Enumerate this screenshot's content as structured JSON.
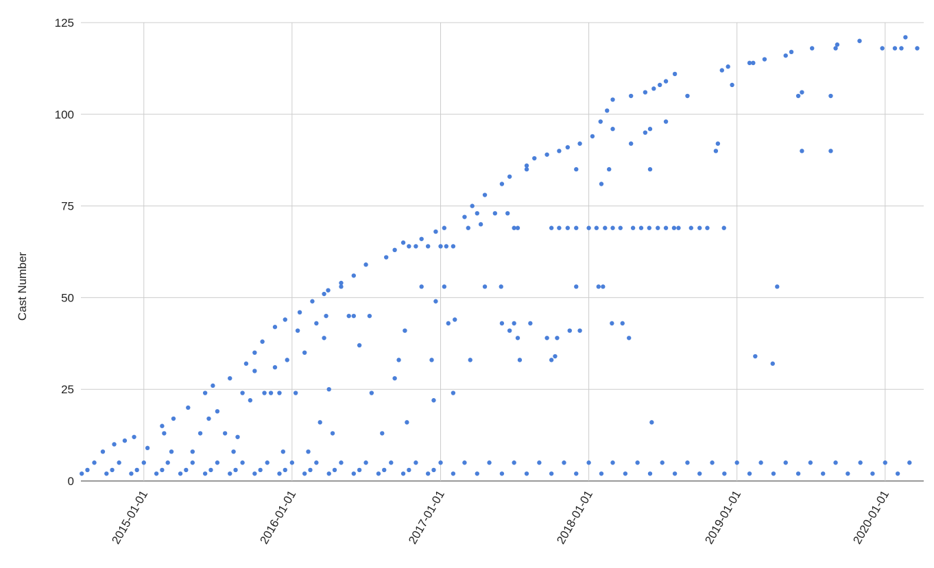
{
  "chart_data": {
    "type": "scatter",
    "y_label": "Cast Number",
    "xlim": [
      "2014-07-30",
      "2020-04-05"
    ],
    "xticks": [
      "2015-01-01",
      "2016-01-01",
      "2017-01-01",
      "2018-01-01",
      "2019-01-01",
      "2020-01-01"
    ],
    "ylim": [
      0,
      125
    ],
    "yticks": [
      0,
      25,
      50,
      75,
      100,
      125
    ],
    "grid": true,
    "series": [
      {
        "color": "#4a7fd9",
        "x": [
          "2014-09-22",
          "2014-10-20",
          "2014-11-15",
          "2014-12-08",
          "2015-01-10",
          "2015-02-15",
          "2015-03-15",
          "2015-04-20",
          "2015-06-01",
          "2015-06-20",
          "2015-08-01",
          "2015-09-10",
          "2015-10-01",
          "2015-10-20",
          "2015-11-20",
          "2015-12-15",
          "2016-01-20",
          "2016-02-20",
          "2016-03-20",
          "2016-03-30",
          "2016-05-01",
          "2016-06-01",
          "2016-07-01",
          "2016-08-20",
          "2016-09-10",
          "2016-10-01",
          "2016-11-15",
          "2016-12-20",
          "2017-01-10",
          "2017-03-01",
          "2017-03-20",
          "2017-04-20",
          "2017-06-01",
          "2017-06-20",
          "2017-08-01",
          "2017-08-20",
          "2017-09-20",
          "2017-10-20",
          "2017-11-10",
          "2017-12-10",
          "2018-01-10",
          "2018-01-30",
          "2018-02-15",
          "2018-03-01",
          "2018-04-15",
          "2018-05-20",
          "2018-06-10",
          "2018-06-25",
          "2018-07-10",
          "2018-08-01",
          "2018-09-01",
          "2018-11-25",
          "2018-12-10",
          "2018-12-20",
          "2019-02-01",
          "2019-02-10",
          "2019-03-10",
          "2019-05-01",
          "2019-05-15",
          "2019-07-05",
          "2019-09-01",
          "2019-09-05",
          "2019-10-30",
          "2019-12-25",
          "2020-01-25",
          "2020-02-10",
          "2020-02-20",
          "2020-03-20",
          "2019-06-01",
          "2019-06-10",
          "2019-06-10",
          "2019-08-20",
          "2019-08-20",
          "2019-02-15",
          "2019-03-30",
          "2019-04-10",
          "2018-05-20",
          "2018-06-01",
          "2018-06-01",
          "2018-07-10",
          "2018-11-10",
          "2018-11-15",
          "2018-04-15",
          "2018-03-01",
          "2018-02-20",
          "2018-02-01",
          "2018-01-25",
          "2017-12-01",
          "2017-12-10",
          "2018-02-05",
          "2017-10-01",
          "2017-10-20",
          "2017-11-10",
          "2017-12-01",
          "2018-01-01",
          "2018-01-20",
          "2018-02-10",
          "2018-03-01",
          "2018-03-20",
          "2018-04-20",
          "2018-05-10",
          "2018-05-30",
          "2018-06-20",
          "2018-07-10",
          "2018-07-30",
          "2018-08-10",
          "2018-09-10",
          "2018-10-01",
          "2018-10-20",
          "2018-11-30",
          "2017-01-01",
          "2017-01-15",
          "2017-02-01",
          "2017-03-10",
          "2017-04-01",
          "2017-04-10",
          "2017-05-15",
          "2017-06-15",
          "2017-07-01",
          "2017-07-10",
          "2016-10-15",
          "2016-11-01",
          "2016-12-01",
          "2017-01-10",
          "2017-01-20",
          "2017-02-01",
          "2017-02-05",
          "2016-12-20",
          "2016-12-10",
          "2016-11-15",
          "2017-03-15",
          "2017-04-20",
          "2017-05-30",
          "2017-06-20",
          "2017-07-01",
          "2017-07-10",
          "2017-08-10",
          "2017-09-20",
          "2017-10-10",
          "2017-10-15",
          "2017-07-15",
          "2017-06-01",
          "2017-08-01",
          "2017-10-01",
          "2017-11-15",
          "2017-12-01",
          "2018-02-27",
          "2018-03-25",
          "2018-04-10",
          "2018-06-05",
          "2015-02-20",
          "2015-03-10",
          "2015-05-01",
          "2015-05-20",
          "2015-06-10",
          "2015-07-01",
          "2015-07-20",
          "2015-08-10",
          "2015-09-01",
          "2015-09-20",
          "2015-10-01",
          "2015-10-25",
          "2015-11-10",
          "2015-12-01",
          "2015-12-20",
          "2016-01-10",
          "2016-02-01",
          "2016-03-01",
          "2016-03-25",
          "2016-04-10",
          "2016-03-10",
          "2016-03-20",
          "2016-04-01",
          "2016-05-20",
          "2016-06-15",
          "2016-07-15",
          "2016-08-10",
          "2016-09-10",
          "2016-10-10",
          "2016-12-15",
          "2016-05-01",
          "2016-06-01",
          "2016-07-10",
          "2016-09-20",
          "2016-10-05",
          "2015-11-20",
          "2015-12-10",
          "2016-02-10",
          "2016-01-15",
          "2015-08-20",
          "2014-08-01",
          "2014-10-01",
          "2014-12-01",
          "2015-02-01",
          "2015-04-01",
          "2015-06-01",
          "2015-08-01",
          "2015-10-01",
          "2015-12-01",
          "2016-02-01",
          "2016-04-01",
          "2016-06-01",
          "2016-08-01",
          "2016-10-01",
          "2016-12-01",
          "2017-02-01",
          "2017-04-01",
          "2017-06-01",
          "2017-08-01",
          "2017-10-01",
          "2017-12-01",
          "2018-02-01",
          "2018-04-01",
          "2018-06-01",
          "2018-08-01",
          "2018-10-01",
          "2018-12-01",
          "2019-02-01",
          "2019-04-01",
          "2019-06-01",
          "2019-08-01",
          "2019-10-01",
          "2019-12-01",
          "2020-02-01",
          "2014-09-01",
          "2014-11-01",
          "2015-01-01",
          "2015-03-01",
          "2015-05-01",
          "2015-07-01",
          "2015-09-01",
          "2015-11-01",
          "2016-01-01",
          "2016-03-01",
          "2016-05-01",
          "2016-07-01",
          "2016-09-01",
          "2016-11-01",
          "2017-01-01",
          "2017-03-01",
          "2017-05-01",
          "2017-07-01",
          "2017-09-01",
          "2017-11-01",
          "2018-01-01",
          "2018-03-01",
          "2018-05-01",
          "2018-07-01",
          "2018-09-01",
          "2018-11-01",
          "2019-01-01",
          "2019-03-01",
          "2019-05-01",
          "2019-07-01",
          "2019-09-01",
          "2019-11-01",
          "2020-01-01",
          "2020-03-01",
          "2014-08-15",
          "2014-10-15",
          "2014-12-15",
          "2015-02-15",
          "2015-04-15",
          "2015-06-15",
          "2015-08-15",
          "2015-10-15",
          "2015-12-15",
          "2016-02-15",
          "2016-04-15",
          "2016-06-15",
          "2016-08-15",
          "2016-10-15",
          "2016-12-15"
        ],
        "values": [
          8,
          10,
          11,
          12,
          9,
          15,
          17,
          20,
          24,
          26,
          28,
          32,
          35,
          38,
          42,
          44,
          46,
          49,
          51,
          52,
          54,
          56,
          59,
          61,
          63,
          65,
          66,
          68,
          69,
          72,
          75,
          78,
          81,
          83,
          86,
          88,
          89,
          90,
          91,
          92,
          94,
          98,
          101,
          104,
          105,
          106,
          107,
          108,
          109,
          111,
          105,
          112,
          113,
          108,
          114,
          114,
          115,
          116,
          117,
          118,
          118,
          119,
          120,
          118,
          118,
          118,
          121,
          118,
          105,
          106,
          90,
          105,
          90,
          34,
          32,
          53,
          95,
          96,
          85,
          98,
          90,
          92,
          92,
          96,
          85,
          81,
          53,
          53,
          41,
          53,
          69,
          69,
          69,
          69,
          69,
          69,
          69,
          69,
          69,
          69,
          69,
          69,
          69,
          69,
          69,
          69,
          69,
          69,
          69,
          69,
          64,
          64,
          64,
          69,
          73,
          70,
          73,
          73,
          69,
          69,
          64,
          64,
          64,
          53,
          43,
          24,
          44,
          49,
          33,
          53,
          33,
          53,
          53,
          41,
          43,
          39,
          43,
          39,
          34,
          39,
          33,
          43,
          85,
          33,
          41,
          85,
          43,
          43,
          39,
          16,
          13,
          8,
          8,
          13,
          17,
          19,
          13,
          8,
          24,
          22,
          30,
          24,
          24,
          24,
          33,
          24,
          35,
          43,
          45,
          13,
          16,
          39,
          25,
          45,
          37,
          24,
          13,
          28,
          16,
          22,
          53,
          45,
          45,
          33,
          41,
          31,
          8,
          8,
          41,
          12,
          2,
          2,
          2,
          2,
          2,
          2,
          2,
          2,
          2,
          2,
          2,
          2,
          2,
          2,
          2,
          2,
          2,
          2,
          2,
          2,
          2,
          2,
          2,
          2,
          2,
          2,
          2,
          2,
          2,
          2,
          2,
          2,
          2,
          2,
          5,
          5,
          5,
          5,
          5,
          5,
          5,
          5,
          5,
          5,
          5,
          5,
          5,
          5,
          5,
          5,
          5,
          5,
          5,
          5,
          5,
          5,
          5,
          5,
          5,
          5,
          5,
          5,
          5,
          5,
          5,
          5,
          5,
          5,
          3,
          3,
          3,
          3,
          3,
          3,
          3,
          3,
          3,
          3,
          3,
          3,
          3,
          3,
          3
        ]
      }
    ]
  }
}
